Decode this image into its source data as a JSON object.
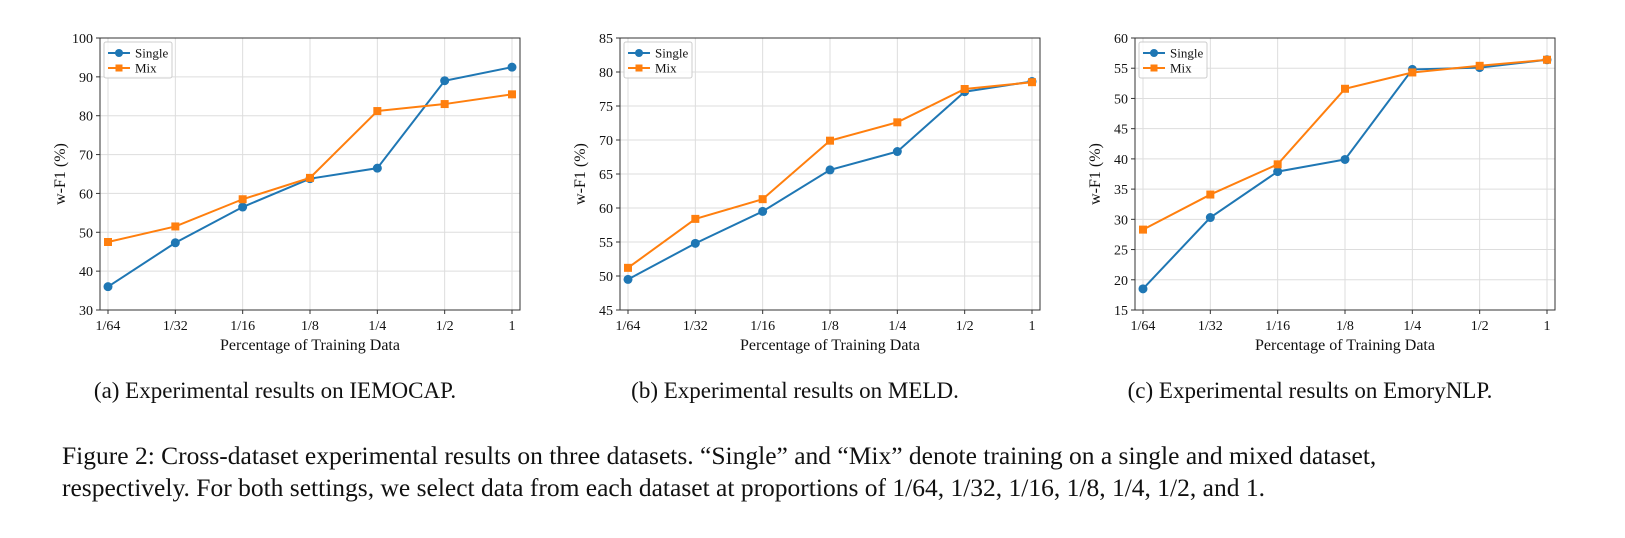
{
  "colors": {
    "single": "#1f77b4",
    "mix": "#ff7f0e",
    "grid": "#dddddd",
    "axis": "#333333"
  },
  "legend_labels": [
    "Single",
    "Mix"
  ],
  "chart_data": [
    {
      "type": "line",
      "caption": "(a) Experimental results on IEMOCAP.",
      "xlabel": "Percentage of Training Data",
      "ylabel": "w-F1 (%)",
      "categories": [
        "1/64",
        "1/32",
        "1/16",
        "1/8",
        "1/4",
        "1/2",
        "1"
      ],
      "ylim": [
        30,
        100
      ],
      "yticks": [
        30,
        40,
        50,
        60,
        70,
        80,
        90,
        100
      ],
      "grid": true,
      "legend": "top-left",
      "series": [
        {
          "name": "Single",
          "values": [
            36,
            47.3,
            56.5,
            63.8,
            66.5,
            89,
            92.5
          ]
        },
        {
          "name": "Mix",
          "values": [
            47.5,
            51.5,
            58.5,
            64,
            81.2,
            83,
            85.5
          ]
        }
      ]
    },
    {
      "type": "line",
      "caption": "(b) Experimental results on MELD.",
      "xlabel": "Percentage of Training Data",
      "ylabel": "w-F1 (%)",
      "categories": [
        "1/64",
        "1/32",
        "1/16",
        "1/8",
        "1/4",
        "1/2",
        "1"
      ],
      "ylim": [
        45,
        85
      ],
      "yticks": [
        45,
        50,
        55,
        60,
        65,
        70,
        75,
        80,
        85
      ],
      "grid": true,
      "legend": "top-left",
      "series": [
        {
          "name": "Single",
          "values": [
            49.5,
            54.8,
            59.5,
            65.6,
            68.3,
            77.1,
            78.6
          ]
        },
        {
          "name": "Mix",
          "values": [
            51.2,
            58.4,
            61.3,
            69.9,
            72.6,
            77.5,
            78.5
          ]
        }
      ]
    },
    {
      "type": "line",
      "caption": "(c) Experimental results on EmoryNLP.",
      "xlabel": "Percentage of Training Data",
      "ylabel": "w-F1 (%)",
      "categories": [
        "1/64",
        "1/32",
        "1/16",
        "1/8",
        "1/4",
        "1/2",
        "1"
      ],
      "ylim": [
        15,
        60
      ],
      "yticks": [
        15,
        20,
        25,
        30,
        35,
        40,
        45,
        50,
        55,
        60
      ],
      "grid": true,
      "legend": "top-left",
      "series": [
        {
          "name": "Single",
          "values": [
            18.5,
            30.3,
            37.9,
            39.9,
            54.8,
            55.1,
            56.4
          ]
        },
        {
          "name": "Mix",
          "values": [
            28.3,
            34.1,
            39.1,
            51.6,
            54.3,
            55.4,
            56.4
          ]
        }
      ]
    }
  ],
  "figure_caption": {
    "line1": "Figure 2: Cross-dataset experimental results on three datasets. “Single” and “Mix” denote training on a single and mixed dataset,",
    "line2": "respectively. For both settings, we select data from each dataset at proportions of 1/64, 1/32, 1/16, 1/8, 1/4, 1/2, and 1."
  }
}
